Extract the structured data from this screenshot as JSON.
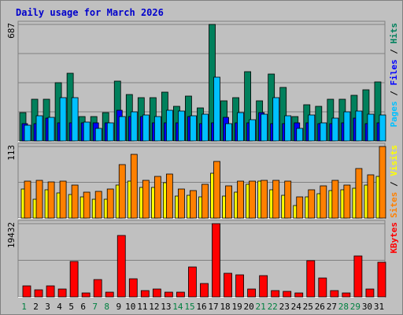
{
  "title": "Daily usage for March 2026",
  "colors": {
    "background": "#c0c0c0",
    "frame": "#808080",
    "title": "#0000cc",
    "hits": "#00805c",
    "files": "#0000ff",
    "pages": "#00c0ff",
    "visits": "#ffff00",
    "sites": "#ff8000",
    "kbytes": "#ff0000",
    "weekend_day": "#008040",
    "weekday": "#000000"
  },
  "chart_data": {
    "type": "bar",
    "title": "Daily usage for March 2026",
    "days": [
      "1",
      "2",
      "3",
      "4",
      "5",
      "6",
      "7",
      "8",
      "9",
      "10",
      "11",
      "12",
      "13",
      "14",
      "15",
      "16",
      "17",
      "18",
      "19",
      "20",
      "21",
      "22",
      "23",
      "24",
      "25",
      "26",
      "27",
      "28",
      "29",
      "30",
      "31"
    ],
    "weekend_days": [
      "1",
      "7",
      "8",
      "14",
      "15",
      "21",
      "22",
      "28",
      "29"
    ],
    "panels": [
      {
        "id": "traffic",
        "max_label": "687",
        "max": 687,
        "right_label": [
          "Pages",
          "Files",
          "Hits"
        ],
        "right_label_colors": [
          "#00c0ff",
          "#0000ff",
          "#00805c"
        ],
        "series": [
          {
            "name": "Hits",
            "color": "#00805c",
            "values": [
              165,
              245,
              245,
              345,
              400,
              145,
              145,
              165,
              355,
              275,
              255,
              255,
              290,
              205,
              265,
              195,
              687,
              235,
              255,
              410,
              235,
              395,
              315,
              145,
              215,
              205,
              245,
              245,
              270,
              300,
              350
            ]
          },
          {
            "name": "Files",
            "color": "#0000ff",
            "values": [
              100,
              100,
              135,
              105,
              105,
              105,
              105,
              105,
              180,
              145,
              145,
              105,
              105,
              105,
              145,
              100,
              105,
              140,
              105,
              105,
              165,
              100,
              100,
              105,
              105,
              100,
              100,
              105,
              135,
              100,
              105
            ]
          },
          {
            "name": "Pages",
            "color": "#00c0ff",
            "values": [
              95,
              150,
              140,
              255,
              255,
              110,
              75,
              105,
              145,
              170,
              155,
              145,
              180,
              175,
              150,
              160,
              375,
              100,
              165,
              125,
              160,
              255,
              150,
              75,
              155,
              105,
              135,
              170,
              175,
              160,
              155
            ]
          }
        ]
      },
      {
        "id": "visitors",
        "max_label": "113",
        "max": 113,
        "right_label": [
          "Sites",
          "Visits"
        ],
        "right_label_colors": [
          "#ff8000",
          "#ffff00"
        ],
        "series": [
          {
            "name": "Visits",
            "color": "#ffff00",
            "values": [
              46,
              30,
              45,
              40,
              37,
              34,
              30,
              30,
              52,
              58,
              49,
              48,
              56,
              35,
              36,
              33,
              71,
              35,
              41,
              54,
              58,
              45,
              36,
              20,
              33,
              38,
              44,
              45,
              47,
              52,
              66
            ]
          },
          {
            "name": "Sites",
            "color": "#ff8000",
            "values": [
              58,
              59,
              57,
              58,
              52,
              41,
              42,
              46,
              84,
              100,
              59,
              66,
              69,
              46,
              44,
              53,
              90,
              51,
              58,
              58,
              59,
              59,
              58,
              34,
              45,
              51,
              59,
              52,
              78,
              68,
              113
            ]
          }
        ]
      },
      {
        "id": "kbytes",
        "max_label": "19432",
        "max": 19432,
        "right_label": [
          "KBytes"
        ],
        "right_label_colors": [
          "#ff0000"
        ],
        "series": [
          {
            "name": "KBytes",
            "color": "#ff0000",
            "values": [
              3026,
              1785,
              2885,
              2019,
              9405,
              1069,
              4530,
              1187,
              16232,
              4883,
              1640,
              2120,
              1302,
              1340,
              7846,
              3624,
              19432,
              6220,
              5856,
              2040,
              5716,
              1574,
              1456,
              992,
              9688,
              5038,
              1660,
              1148,
              10966,
              2102,
              9173
            ]
          }
        ]
      }
    ]
  }
}
